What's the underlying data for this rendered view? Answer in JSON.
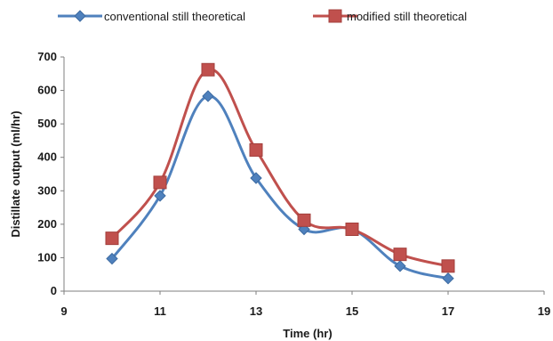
{
  "chart_data": {
    "type": "line",
    "xlabel": "Time (hr)",
    "ylabel": "Distillate output (ml/hr)",
    "xlim": [
      9,
      19
    ],
    "ylim": [
      0,
      700
    ],
    "xticks": [
      "9",
      "11",
      "13",
      "15",
      "17",
      "19"
    ],
    "yticks": [
      "0",
      "100",
      "200",
      "300",
      "400",
      "500",
      "600",
      "700"
    ],
    "grid": false,
    "legend_position": "top",
    "smooth": true,
    "series": [
      {
        "name": "conventional still theoretical",
        "color": "#4f81bd",
        "marker": "diamond",
        "x": [
          10,
          11,
          12,
          13,
          14,
          15,
          16,
          17
        ],
        "y": [
          97,
          285,
          583,
          338,
          185,
          185,
          75,
          38
        ]
      },
      {
        "name": "modified still theoretical",
        "color": "#c0504d",
        "marker": "square",
        "x": [
          10,
          11,
          12,
          13,
          14,
          15,
          16,
          17
        ],
        "y": [
          158,
          325,
          662,
          422,
          212,
          185,
          110,
          75
        ]
      }
    ]
  }
}
